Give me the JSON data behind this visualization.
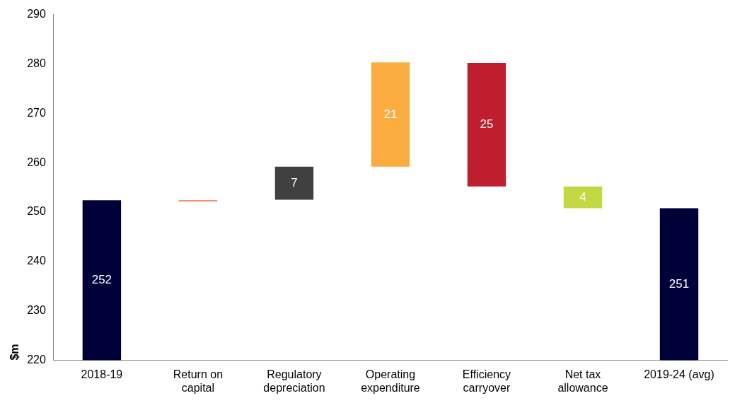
{
  "chart_data": {
    "type": "bar",
    "ylabel": "$m",
    "categories": [
      "2018-19",
      "Return on capital",
      "Regulatory depreciation",
      "Operating expenditure",
      "Efficiency carryover",
      "Net tax allowance",
      "2019-24 (avg)"
    ],
    "values": [
      252.4,
      0.2,
      6.7,
      21.1,
      -25,
      -4.4,
      250.8
    ],
    "base": [
      null,
      252.2,
      252.5,
      259.2,
      280.2,
      255.2,
      null
    ],
    "colors": [
      "#000038",
      "#e8703a",
      "#404040",
      "#fbac41",
      "#be1e2d",
      "#c3d943",
      "#000038"
    ],
    "value_labels": [
      "252",
      null,
      "7",
      "21",
      "25",
      "4",
      "251"
    ],
    "ylim": [
      220,
      290
    ],
    "yticks": [
      220,
      230,
      240,
      250,
      260,
      270,
      280,
      290
    ],
    "grid": false,
    "legend": false
  }
}
